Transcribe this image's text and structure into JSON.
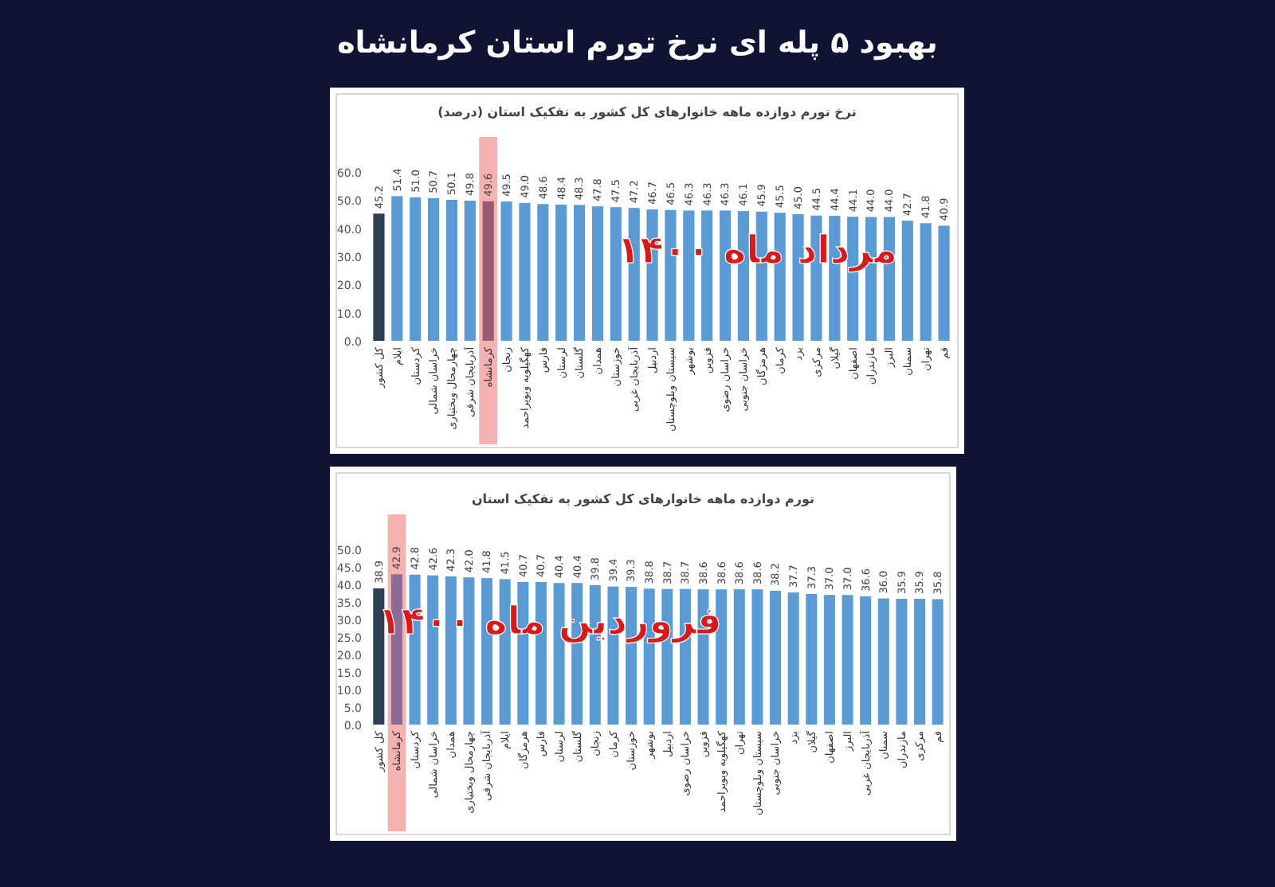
{
  "chart_data": [
    {
      "type": "bar",
      "title": "بهبود ۵ پله ای نرخ تورم استان کرمانشاه",
      "subtitle": "نرخ تورم دوازده ماهه خانوارهای کل کشور به تفکیک استان (درصد)",
      "categories": [
        "کل کشور",
        "ایلام",
        "کردستان",
        "خراسان شمالی",
        "چهارمحال وبختیاری",
        "آذربایجان شرقی",
        "کرمانشاه",
        "زنجان",
        "کهگیلویه وبویراحمد",
        "فارس",
        "لرستان",
        "گلستان",
        "همدان",
        "خوزستان",
        "آذربایجان غربی",
        "اردبیل",
        "سیستان وبلوچستان",
        "بوشهر",
        "قزوین",
        "خراسان رضوی",
        "خراسان جنوبی",
        "هرمزگان",
        "کرمان",
        "یزد",
        "مرکزی",
        "گیلان",
        "اصفهان",
        "مازندران",
        "البرز",
        "سمنان",
        "تهران",
        "قم"
      ],
      "values": [
        45.2,
        51.4,
        51.0,
        50.7,
        50.1,
        49.8,
        49.6,
        49.5,
        49.0,
        48.6,
        48.4,
        48.3,
        47.8,
        47.5,
        47.2,
        46.7,
        46.5,
        46.3,
        46.3,
        46.3,
        46.1,
        45.9,
        45.5,
        45.0,
        44.5,
        44.4,
        44.1,
        44.0,
        44.0,
        42.7,
        41.8,
        40.9
      ],
      "value_labels": [
        "45.2",
        "51.4",
        "51.0",
        "50.7",
        "50.1",
        "49.8",
        "49.6",
        "49.5",
        "49.0",
        "48.6",
        "48.4",
        "48.3",
        "47.8",
        "47.5",
        "47.2",
        "46.7",
        "46.5",
        "46.3",
        "46.3",
        "46.3",
        "46.1",
        "45.9",
        "45.5",
        "45.0",
        "44.5",
        "44.4",
        "44.1",
        "44.0",
        "44.0",
        "42.7",
        "41.8",
        "40.9"
      ],
      "colors": [
        "#2f3e52",
        "#5b9bd5",
        "#5b9bd5",
        "#5b9bd5",
        "#5b9bd5",
        "#5b9bd5",
        "#9c5a74",
        "#5b9bd5",
        "#5b9bd5",
        "#5b9bd5",
        "#5b9bd5",
        "#5b9bd5",
        "#5b9bd5",
        "#5b9bd5",
        "#5b9bd5",
        "#5b9bd5",
        "#5b9bd5",
        "#5b9bd5",
        "#5b9bd5",
        "#5b9bd5",
        "#5b9bd5",
        "#5b9bd5",
        "#5b9bd5",
        "#5b9bd5",
        "#5b9bd5",
        "#5b9bd5",
        "#5b9bd5",
        "#5b9bd5",
        "#5b9bd5",
        "#5b9bd5",
        "#5b9bd5",
        "#5b9bd5"
      ],
      "ylim": [
        0,
        60
      ],
      "yticks": [
        {
          "value": 0,
          "label": "0.0"
        },
        {
          "value": 10,
          "label": "10.0"
        },
        {
          "value": 20,
          "label": "20.0"
        },
        {
          "value": 30,
          "label": "30.0"
        },
        {
          "value": 40,
          "label": "40.0"
        },
        {
          "value": 50,
          "label": "50.0"
        },
        {
          "value": 60,
          "label": "60.0"
        }
      ],
      "bands": [
        {
          "axis": "x",
          "from": "کرمانشاه",
          "to": "کرمانشاه",
          "color": "#f4a3a3"
        }
      ],
      "annotations": [
        "مرداد ماه ۱۴۰۰"
      ]
    },
    {
      "type": "bar",
      "title": "تورم دوازده ماهه خانوارهای کل کشور به تفکیک استان",
      "categories": [
        "کل کشور",
        "کرمانشاه",
        "کردستان",
        "خراسان شمالی",
        "همدان",
        "چهارمحال وبختیاری",
        "آذربایجان شرقی",
        "ایلام",
        "هرمزگان",
        "فارس",
        "لرستان",
        "گلستان",
        "زنجان",
        "کرمان",
        "خوزستان",
        "بوشهر",
        "اردبیل",
        "خراسان رضوی",
        "قزوین",
        "کهگیلویه وبویراحمد",
        "تهران",
        "سیستان وبلوچستان",
        "خراسان جنوبی",
        "یزد",
        "گیلان",
        "اصفهان",
        "البرز",
        "آذربایجان غربی",
        "سمنان",
        "مازندران",
        "مرکزی",
        "قم"
      ],
      "values": [
        38.9,
        42.9,
        42.8,
        42.6,
        42.3,
        42.0,
        41.8,
        41.5,
        40.7,
        40.7,
        40.4,
        40.4,
        39.8,
        39.4,
        39.3,
        38.8,
        38.7,
        38.7,
        38.6,
        38.6,
        38.6,
        38.6,
        38.2,
        37.7,
        37.3,
        37.0,
        37.0,
        36.6,
        36.0,
        35.9,
        35.9,
        35.8
      ],
      "value_labels": [
        "38.9",
        "42.9",
        "42.8",
        "42.6",
        "42.3",
        "42.0",
        "41.8",
        "41.5",
        "40.7",
        "40.7",
        "40.4",
        "40.4",
        "39.8",
        "39.4",
        "39.3",
        "38.8",
        "38.7",
        "38.7",
        "38.6",
        "38.6",
        "38.6",
        "38.6",
        "38.2",
        "37.7",
        "37.3",
        "37.0",
        "37.0",
        "36.6",
        "36.0",
        "35.9",
        "35.9",
        "35.8"
      ],
      "colors": [
        "#2f3e52",
        "#8e6a96",
        "#5b9bd5",
        "#5b9bd5",
        "#5b9bd5",
        "#5b9bd5",
        "#5b9bd5",
        "#5b9bd5",
        "#5b9bd5",
        "#5b9bd5",
        "#5b9bd5",
        "#5b9bd5",
        "#5b9bd5",
        "#5b9bd5",
        "#5b9bd5",
        "#5b9bd5",
        "#5b9bd5",
        "#5b9bd5",
        "#5b9bd5",
        "#5b9bd5",
        "#5b9bd5",
        "#5b9bd5",
        "#5b9bd5",
        "#5b9bd5",
        "#5b9bd5",
        "#5b9bd5",
        "#5b9bd5",
        "#5b9bd5",
        "#5b9bd5",
        "#5b9bd5",
        "#5b9bd5",
        "#5b9bd5"
      ],
      "ylim": [
        0,
        50
      ],
      "yticks": [
        {
          "value": 0,
          "label": "0.0"
        },
        {
          "value": 5,
          "label": "5.0"
        },
        {
          "value": 10,
          "label": "10.0"
        },
        {
          "value": 15,
          "label": "15.0"
        },
        {
          "value": 20,
          "label": "20.0"
        },
        {
          "value": 25,
          "label": "25.0"
        },
        {
          "value": 30,
          "label": "30.0"
        },
        {
          "value": 35,
          "label": "35.0"
        },
        {
          "value": 40,
          "label": "40.0"
        },
        {
          "value": 45,
          "label": "45.0"
        },
        {
          "value": 50,
          "label": "50.0"
        }
      ],
      "bands": [
        {
          "axis": "x",
          "from": "کرمانشاه",
          "to": "کرمانشاه",
          "color": "#f4a3a3"
        }
      ],
      "annotations": [
        "فروردین ماه ۱۴۰۰"
      ]
    }
  ]
}
